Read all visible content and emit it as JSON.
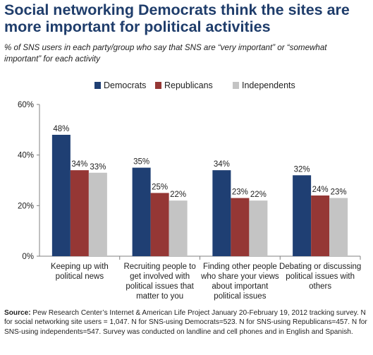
{
  "title": "Social networking Democrats think the sites are more important for political activities",
  "subtitle": "% of SNS users in each party/group who say that SNS are “very important” or “somewhat important” for each activity",
  "source": {
    "lead": "Source:",
    "text": " Pew Research Center’s Internet & American Life Project January 20-February 19, 2012 tracking survey. N for social networking site users = 1,047. N for SNS-using Democrats=523. N for SNS-using Republicans=457. N for SNS-using independents=547.  Survey was conducted on landline and cell phones and in English and Spanish."
  },
  "chart_data": {
    "type": "bar",
    "categories": [
      [
        "Keeping up with",
        "political news"
      ],
      [
        "Recruiting people to",
        "get involved with",
        "political issues that",
        "matter to you"
      ],
      [
        "Finding other people",
        "who share your views",
        "about important",
        "political issues"
      ],
      [
        "Debating or discussing",
        "political issues with",
        "others"
      ]
    ],
    "series": [
      {
        "name": "Democrats",
        "color": "#1f3f73",
        "values": [
          48,
          35,
          34,
          32
        ]
      },
      {
        "name": "Republicans",
        "color": "#953735",
        "values": [
          34,
          25,
          23,
          24
        ]
      },
      {
        "name": "Independents",
        "color": "#c4c4c4",
        "values": [
          33,
          22,
          22,
          23
        ]
      }
    ],
    "value_suffix": "%",
    "y_ticks": [
      "0%",
      "20%",
      "40%",
      "60%"
    ],
    "ylim": [
      0,
      60
    ],
    "legend_position": "top-center"
  }
}
